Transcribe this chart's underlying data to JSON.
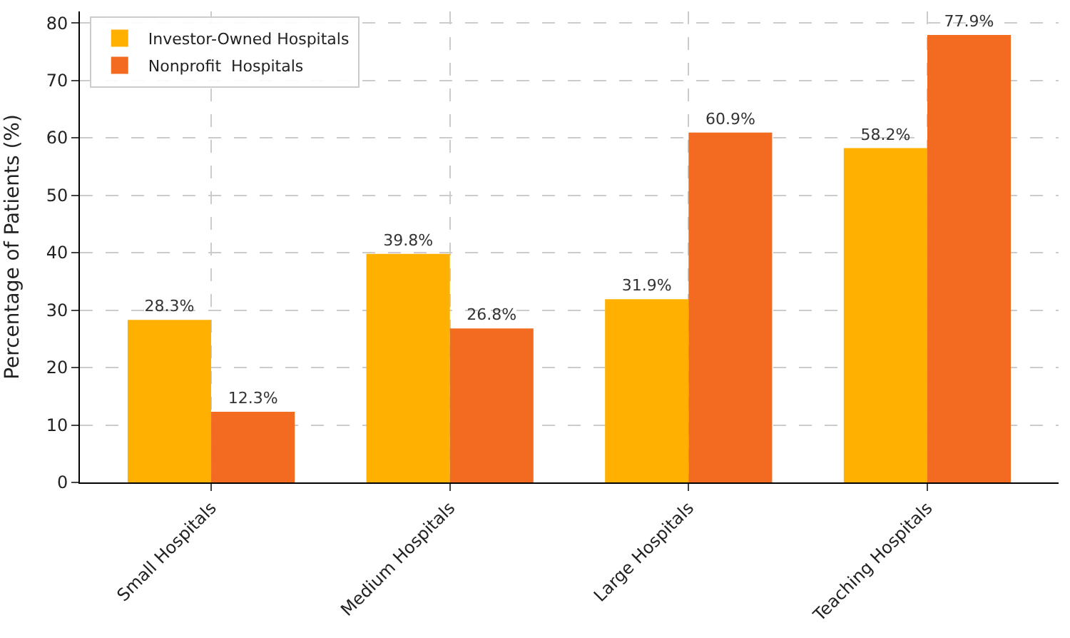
{
  "chart_data": {
    "type": "bar",
    "ylabel": "Percentage of Patients (%)",
    "categories": [
      "Small Hospitals",
      "Medium Hospitals",
      "Large Hospitals",
      "Teaching Hospitals"
    ],
    "series": [
      {
        "name": "Investor-Owned Hospitals",
        "color": "#ffb000",
        "values": [
          28.3,
          39.8,
          31.9,
          58.2
        ],
        "value_labels": [
          "28.3%",
          "39.8%",
          "31.9%",
          "58.2%"
        ]
      },
      {
        "name": "Nonprofit  Hospitals",
        "color": "#f26b21",
        "values": [
          12.3,
          26.8,
          60.9,
          77.9
        ],
        "value_labels": [
          "12.3%",
          "26.8%",
          "60.9%",
          "77.9%"
        ]
      }
    ],
    "ylim": [
      0,
      82
    ],
    "yticks": [
      0,
      10,
      20,
      30,
      40,
      50,
      60,
      70,
      80
    ],
    "grid": true,
    "legend": "top left"
  }
}
